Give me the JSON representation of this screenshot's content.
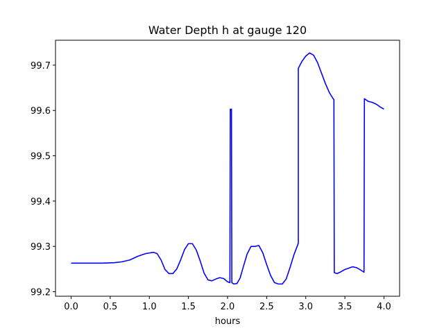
{
  "chart_data": {
    "type": "line",
    "title": "Water Depth h at gauge 120",
    "xlabel": "hours",
    "ylabel": "",
    "xlim": [
      -0.2,
      4.2
    ],
    "ylim": [
      99.19,
      99.755
    ],
    "xticks": [
      0.0,
      0.5,
      1.0,
      1.5,
      2.0,
      2.5,
      3.0,
      3.5,
      4.0
    ],
    "xtick_labels": [
      "0.0",
      "0.5",
      "1.0",
      "1.5",
      "2.0",
      "2.5",
      "3.0",
      "3.5",
      "4.0"
    ],
    "yticks": [
      99.2,
      99.3,
      99.4,
      99.5,
      99.6,
      99.7
    ],
    "ytick_labels": [
      "99.2",
      "99.3",
      "99.4",
      "99.5",
      "99.6",
      "99.7"
    ],
    "grid": false,
    "legend": "none",
    "series": [
      {
        "color": "#0000ff",
        "x": [
          0.0,
          0.2,
          0.4,
          0.55,
          0.65,
          0.75,
          0.85,
          0.95,
          1.05,
          1.1,
          1.15,
          1.2,
          1.25,
          1.3,
          1.35,
          1.4,
          1.45,
          1.5,
          1.55,
          1.6,
          1.65,
          1.7,
          1.75,
          1.8,
          1.85,
          1.9,
          1.95,
          2.0,
          2.03,
          2.035,
          2.045,
          2.05,
          2.055,
          2.08,
          2.12,
          2.16,
          2.2,
          2.25,
          2.3,
          2.35,
          2.4,
          2.45,
          2.5,
          2.55,
          2.6,
          2.65,
          2.7,
          2.75,
          2.8,
          2.85,
          2.905,
          2.905,
          2.95,
          3.0,
          3.05,
          3.1,
          3.15,
          3.2,
          3.25,
          3.3,
          3.35,
          3.36,
          3.365,
          3.4,
          3.45,
          3.5,
          3.55,
          3.6,
          3.65,
          3.7,
          3.745,
          3.75,
          3.8,
          3.85,
          3.9,
          3.95,
          4.0
        ],
        "y": [
          99.263,
          99.263,
          99.263,
          99.264,
          99.266,
          99.27,
          99.278,
          99.284,
          99.287,
          99.284,
          99.27,
          99.249,
          99.24,
          99.24,
          99.25,
          99.27,
          99.293,
          99.306,
          99.306,
          99.292,
          99.268,
          99.241,
          99.226,
          99.224,
          99.228,
          99.231,
          99.229,
          99.222,
          99.22,
          99.603,
          99.6,
          99.603,
          99.22,
          99.217,
          99.218,
          99.23,
          99.254,
          99.283,
          99.3,
          99.3,
          99.302,
          99.286,
          99.26,
          99.236,
          99.22,
          99.217,
          99.217,
          99.228,
          99.254,
          99.282,
          99.307,
          99.693,
          99.708,
          99.72,
          99.727,
          99.722,
          99.706,
          99.683,
          99.66,
          99.64,
          99.626,
          99.624,
          99.242,
          99.24,
          99.244,
          99.249,
          99.252,
          99.255,
          99.253,
          99.248,
          99.243,
          99.626,
          99.62,
          99.618,
          99.614,
          99.608,
          99.603
        ]
      }
    ]
  }
}
